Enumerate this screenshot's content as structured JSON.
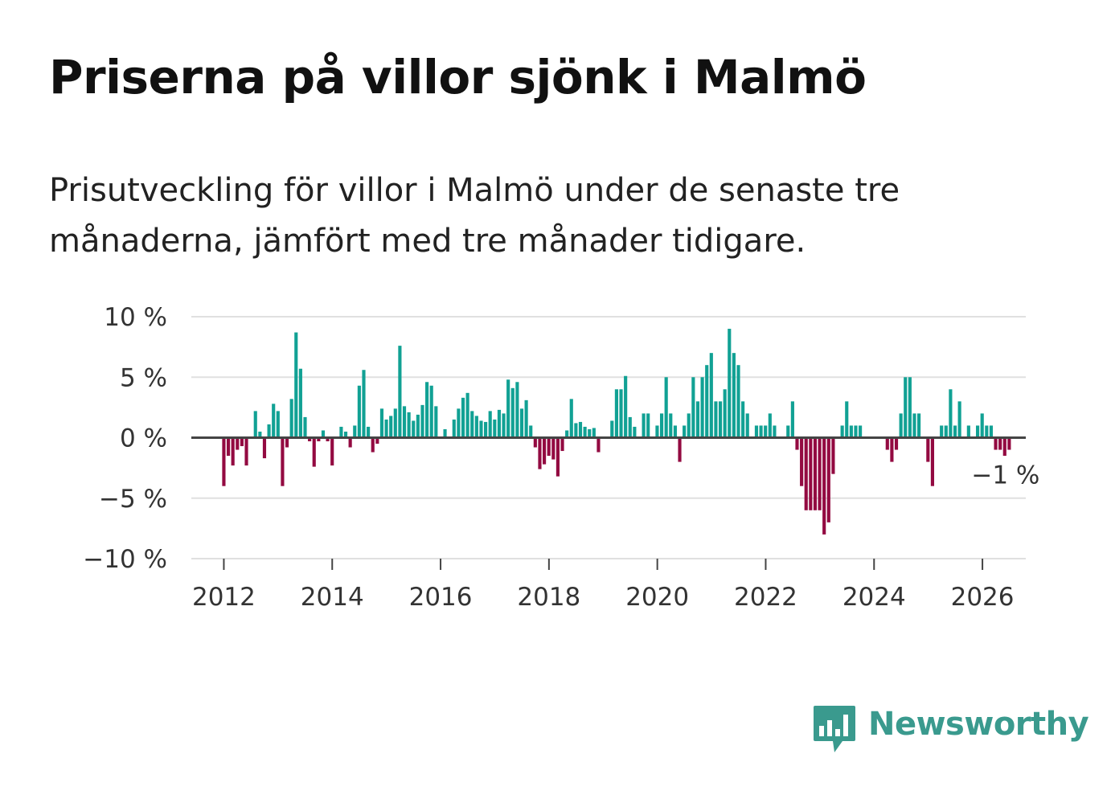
{
  "title": "Priserna på villor sjönk i Malmö",
  "subtitle": "Prisutveckling för villor i Malmö under de senaste tre månaderna, jämfört med tre månader tidigare.",
  "brand": {
    "name": "Newsworthy",
    "color": "#3a9a8e",
    "icon": "newsworthy-logo-icon"
  },
  "colors": {
    "positive": "#11a194",
    "negative": "#930a41",
    "grid": "#e0e0e0",
    "zero": "#444444"
  },
  "chart_data": {
    "type": "bar",
    "title": "Priserna på villor sjönk i Malmö",
    "xlabel": "",
    "ylabel": "",
    "ylim": [
      -10,
      10
    ],
    "xlim": [
      2011.4,
      2026.8
    ],
    "y_ticks": [
      10,
      5,
      0,
      -5,
      -10
    ],
    "y_tick_labels": [
      "10 %",
      "5 %",
      "0 %",
      "−5 %",
      "−10 %"
    ],
    "x_ticks": [
      2012,
      2014,
      2016,
      2018,
      2020,
      2022,
      2024,
      2026
    ],
    "x_tick_labels": [
      "2012",
      "2014",
      "2016",
      "2018",
      "2020",
      "2022",
      "2024",
      "2026"
    ],
    "annotation": {
      "label": "−1 %",
      "value": -1
    },
    "series": [
      {
        "name": "Prisutveckling",
        "x_start": 2012.0,
        "step": 0.0833,
        "values": [
          -4,
          -1.5,
          -2.3,
          -1,
          -0.7,
          -2.3,
          0,
          2.2,
          0.5,
          -1.7,
          1.1,
          2.8,
          2.2,
          -4,
          -0.8,
          3.2,
          8.7,
          5.7,
          1.7,
          -0.3,
          -2.4,
          -0.3,
          0.6,
          -0.3,
          -2.3,
          0,
          0.9,
          0.5,
          -0.8,
          1,
          4.3,
          5.6,
          0.9,
          -1.2,
          -0.5,
          2.4,
          1.5,
          1.8,
          2.4,
          7.6,
          2.6,
          2.1,
          1.4,
          1.9,
          2.7,
          4.6,
          4.3,
          2.6,
          0,
          0.7,
          0,
          1.5,
          2.4,
          3.3,
          3.7,
          2.2,
          1.8,
          1.4,
          1.3,
          2.2,
          1.5,
          2.3,
          2,
          4.8,
          4.1,
          4.6,
          2.4,
          3.1,
          1,
          -0.8,
          -2.6,
          -2.2,
          -1.5,
          -1.8,
          -3.2,
          -1.1,
          0.6,
          3.2,
          1.2,
          1.3,
          0.9,
          0.7,
          0.8,
          -1.2,
          0,
          0,
          1.4,
          4,
          4,
          5.1,
          1.7,
          0.9,
          0,
          2,
          2,
          0,
          1,
          2,
          5,
          2,
          1,
          -2,
          1,
          2,
          5,
          3,
          5,
          6,
          7,
          3,
          3,
          4,
          9,
          7,
          6,
          3,
          2,
          0,
          1,
          1,
          1,
          2,
          1,
          0,
          0,
          1,
          3,
          -1,
          -4,
          -6,
          -6,
          -6,
          -6,
          -8,
          -7,
          -3,
          0,
          1,
          3,
          1,
          1,
          1,
          0,
          0,
          0,
          0,
          0,
          -1,
          -2,
          -1,
          2,
          5,
          5,
          2,
          2,
          0,
          -2,
          -4,
          0,
          1,
          1,
          4,
          1,
          3,
          0,
          1,
          0,
          1,
          2,
          1,
          1,
          -1,
          -1,
          -1.5,
          -1
        ]
      }
    ]
  }
}
